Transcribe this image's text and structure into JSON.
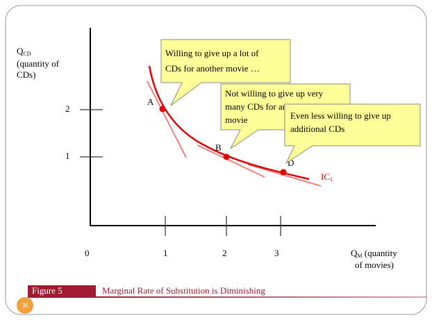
{
  "y_axis": {
    "label": "Q",
    "label_sub": "CD",
    "label_lines": [
      "(quantity of",
      "CDs)"
    ],
    "ticks": [
      "2",
      "1"
    ]
  },
  "x_axis": {
    "label": "Q",
    "label_sub": "M",
    "label_rest": " (quantity",
    "label_line2": "of movies)",
    "ticks": [
      "0",
      "1",
      "2",
      "3"
    ]
  },
  "points": [
    "A",
    "B",
    "D"
  ],
  "curve": {
    "label": "IC",
    "label_sub": "1"
  },
  "callouts": [
    {
      "lines": [
        "Willing to give up a lot of",
        "CDs for another movie …"
      ]
    },
    {
      "lines": [
        "Not willing to give up very",
        "many CDs for another",
        "movie"
      ]
    },
    {
      "lines": [
        "Even less willing to give up",
        "additional CDs"
      ]
    }
  ],
  "figure": {
    "number": "Figure 5",
    "caption": "Marginal Rate of Substitution is Diminishing"
  },
  "slide_number": "36"
}
